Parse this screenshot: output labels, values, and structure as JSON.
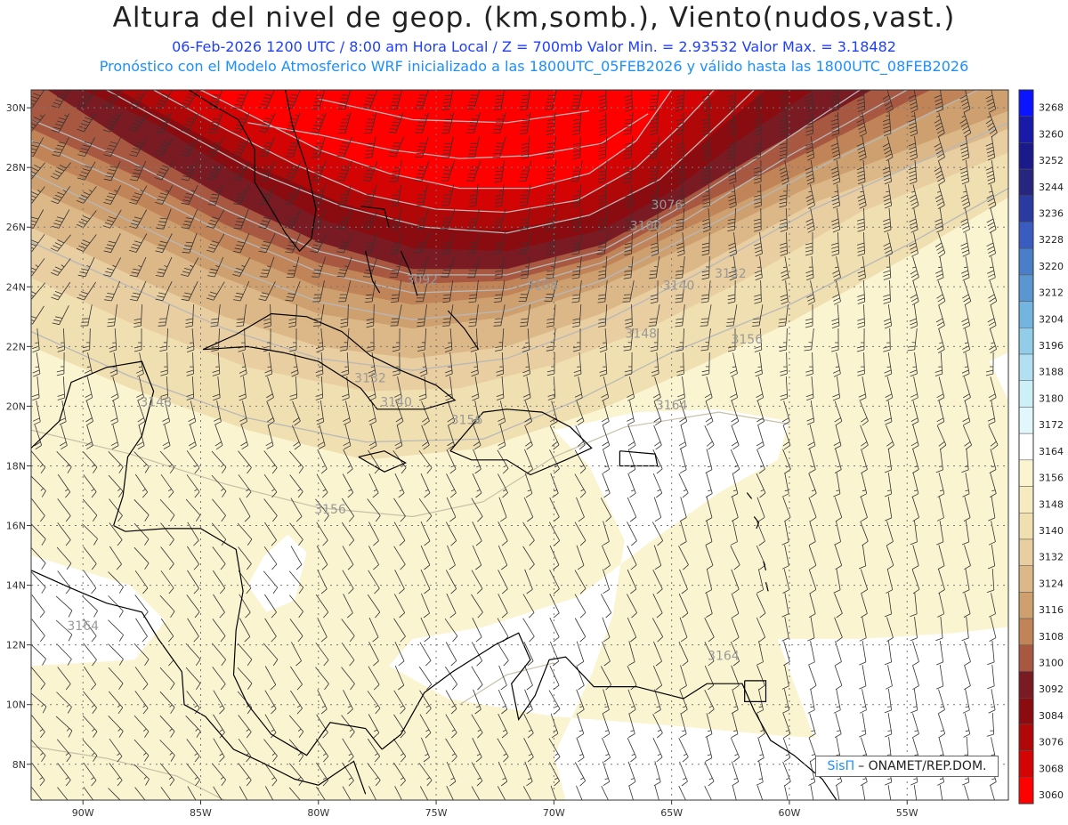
{
  "header": {
    "title": "Altura del nivel de geop. (km,somb.), Viento(nudos,vast.)",
    "line1": "06-Feb-2026  1200 UTC / 8:00 am Hora Local / Z = 700mb     Valor Min. = 2.93532  Valor Max. = 3.18482",
    "line2": "Pronóstico con el Modelo Atmosferico WRF inicializado a las 1800UTC_05FEB2026 y válido hasta las  1800UTC_08FEB2026"
  },
  "axes": {
    "lon_labels": [
      "90W",
      "85W",
      "80W",
      "75W",
      "70W",
      "65W",
      "60W",
      "55W"
    ],
    "lon_values": [
      -90,
      -85,
      -80,
      -75,
      -70,
      -65,
      -60,
      -55
    ],
    "lat_labels": [
      "30N",
      "28N",
      "26N",
      "24N",
      "22N",
      "20N",
      "18N",
      "16N",
      "14N",
      "12N",
      "10N",
      "8N"
    ],
    "lat_values": [
      30,
      28,
      26,
      24,
      22,
      20,
      18,
      16,
      14,
      12,
      10,
      8
    ],
    "lon_range": [
      -92.2,
      -50.7
    ],
    "lat_range": [
      6.8,
      30.6
    ]
  },
  "colorbar": {
    "levels": [
      "3268",
      "3260",
      "3252",
      "3244",
      "3236",
      "3228",
      "3220",
      "3212",
      "3204",
      "3196",
      "3188",
      "3180",
      "3172",
      "3164",
      "3156",
      "3148",
      "3140",
      "3132",
      "3124",
      "3116",
      "3108",
      "3100",
      "3092",
      "3084",
      "3076",
      "3068",
      "3060"
    ],
    "colors": [
      "#0a14ff",
      "#1a1aa8",
      "#1a1a8a",
      "#262680",
      "#2a3aa0",
      "#3a5cc0",
      "#4a7ec8",
      "#5a96d0",
      "#74b4e0",
      "#92cce8",
      "#b2e0f2",
      "#cceff8",
      "#e2f7fc",
      "#ffffff",
      "#faf4d0",
      "#f6ebc0",
      "#f0dfb0",
      "#e8cea0",
      "#dcb888",
      "#cea070",
      "#c08458",
      "#a85840",
      "#7a1a22",
      "#8a0c10",
      "#b00808",
      "#d40404",
      "#ff0000"
    ]
  },
  "contour_labels": [
    {
      "text": "3076",
      "lon": -65.2,
      "lat": 26.6
    },
    {
      "text": "3100",
      "lon": -66.1,
      "lat": 25.9
    },
    {
      "text": "3092",
      "lon": -75.6,
      "lat": 24.1
    },
    {
      "text": "3108",
      "lon": -70.5,
      "lat": 23.9
    },
    {
      "text": "3132",
      "lon": -62.5,
      "lat": 24.3
    },
    {
      "text": "3140",
      "lon": -64.7,
      "lat": 23.9
    },
    {
      "text": "3148",
      "lon": -66.3,
      "lat": 22.3
    },
    {
      "text": "3156",
      "lon": -61.8,
      "lat": 22.1
    },
    {
      "text": "3132",
      "lon": -77.8,
      "lat": 20.8
    },
    {
      "text": "3140",
      "lon": -76.7,
      "lat": 20.0
    },
    {
      "text": "3148",
      "lon": -86.9,
      "lat": 20.0
    },
    {
      "text": "3156",
      "lon": -73.7,
      "lat": 19.4
    },
    {
      "text": "3164",
      "lon": -65.0,
      "lat": 19.9
    },
    {
      "text": "3156",
      "lon": -79.5,
      "lat": 16.4
    },
    {
      "text": "3164",
      "lon": -90.0,
      "lat": 12.5
    },
    {
      "text": "3164",
      "lon": -62.8,
      "lat": 11.5
    }
  ],
  "credit": {
    "brand": "SisΠ",
    "text": "– ONAMET/REP.DOM."
  }
}
